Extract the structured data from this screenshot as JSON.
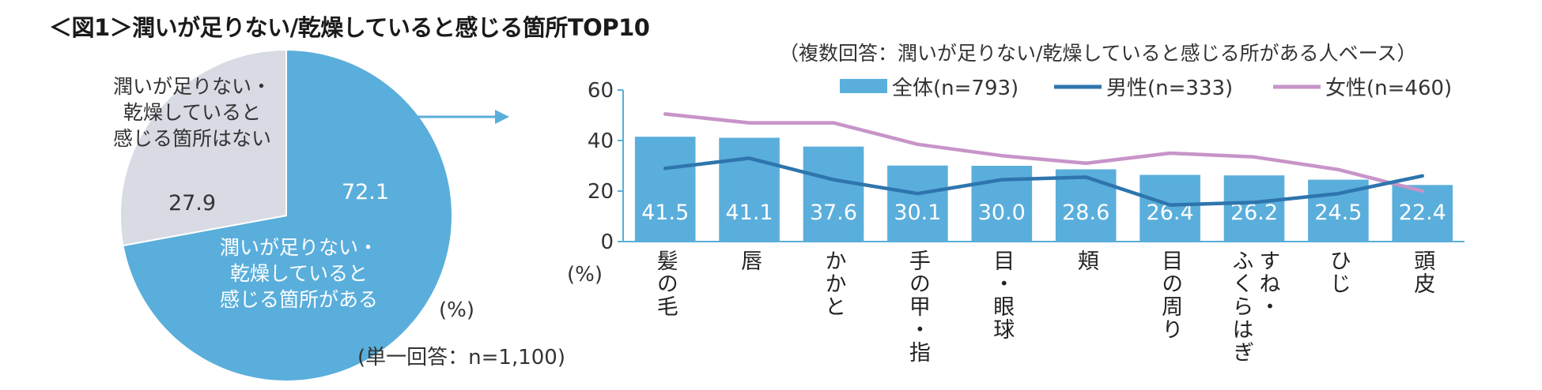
{
  "title": "＜図1＞潤いが足りない/乾燥していると感じる箇所TOP10",
  "sample_note": "（複数回答：潤いが足りない/乾燥していると感じる所がある人ベース）",
  "pie_unit": "(%)",
  "pie_note": "(単一回答：n=1,100)",
  "axis_unit": "(%)",
  "colors": {
    "bar": "#5aaedb",
    "male": "#2e75ad",
    "female": "#c794c8",
    "pie_main": "#5aaedb",
    "pie_rest": "#d8dae4",
    "arrow": "#5aaedb",
    "axis": "#5aaedb"
  },
  "chart_data": [
    {
      "type": "pie",
      "title": "",
      "slices": [
        {
          "label_lines": [
            "潤いが足りない・",
            "乾燥していると",
            "感じる箇所がある"
          ],
          "value": 72.1,
          "value_label": "72.1"
        },
        {
          "label_lines": [
            "潤いが足りない・",
            "乾燥していると",
            "感じる箇所はない"
          ],
          "value": 27.9,
          "value_label": "27.9"
        }
      ]
    },
    {
      "type": "bar",
      "categories": [
        {
          "label": "髪の毛",
          "columns": [
            "髪の毛"
          ]
        },
        {
          "label": "唇",
          "columns": [
            "唇"
          ]
        },
        {
          "label": "かかと",
          "columns": [
            "かかと"
          ]
        },
        {
          "label": "手の甲・指",
          "columns": [
            "手の甲・指"
          ]
        },
        {
          "label": "目・眼球",
          "columns": [
            "目・眼球"
          ]
        },
        {
          "label": "頬",
          "columns": [
            "頬"
          ]
        },
        {
          "label": "目の周り",
          "columns": [
            "目の周り"
          ]
        },
        {
          "label": "すね・ふくらはぎ",
          "columns": [
            "すね・",
            "ふくらはぎ"
          ]
        },
        {
          "label": "ひじ",
          "columns": [
            "ひじ"
          ]
        },
        {
          "label": "頭皮",
          "columns": [
            "頭皮"
          ]
        }
      ],
      "series": [
        {
          "name": "全体(n=793)",
          "kind": "bar",
          "values": [
            41.5,
            41.1,
            37.6,
            30.1,
            30.0,
            28.6,
            26.4,
            26.2,
            24.5,
            22.4
          ],
          "labels": [
            "41.5",
            "41.1",
            "37.6",
            "30.1",
            "30.0",
            "28.6",
            "26.4",
            "26.2",
            "24.5",
            "22.4"
          ]
        },
        {
          "name": "男性(n=333)",
          "kind": "line",
          "values": [
            29,
            33,
            24.5,
            19,
            24.5,
            25.5,
            14.5,
            15.5,
            19,
            26
          ]
        },
        {
          "name": "女性(n=460)",
          "kind": "line",
          "values": [
            50.5,
            47,
            47,
            38.5,
            34,
            31,
            35,
            33.5,
            28.5,
            20
          ]
        }
      ],
      "y_ticks": [
        "0",
        "20",
        "40",
        "60"
      ],
      "ylim": [
        0,
        60
      ],
      "legend_position": "top-right"
    }
  ]
}
